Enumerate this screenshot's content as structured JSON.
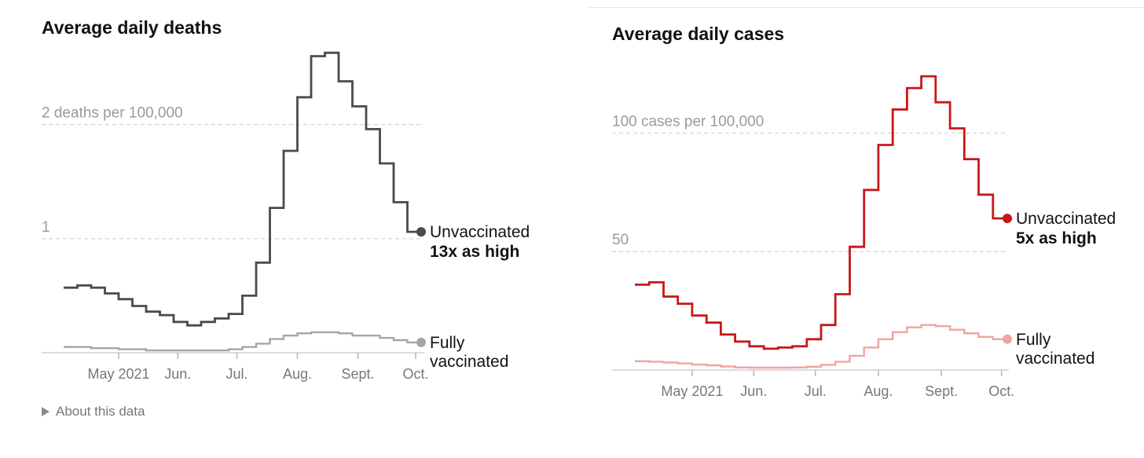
{
  "about_label": "About this data",
  "colors": {
    "deaths_unvaccinated": "#4a4a4a",
    "deaths_vaccinated": "#a5a5a5",
    "cases_unvaccinated": "#c8171b",
    "cases_vaccinated": "#f0a3a0",
    "gridline": "#dcdcdc",
    "axis": "#d0d0d0"
  },
  "chart_data": [
    {
      "type": "line",
      "step": true,
      "title": "Average daily deaths",
      "ylabel": "deaths per 100,000",
      "ylim": [
        0,
        2.7
      ],
      "gridlines": [
        {
          "value": 2,
          "label": "2 deaths per 100,000"
        },
        {
          "value": 1,
          "label": "1"
        }
      ],
      "xlim": [
        0,
        26
      ],
      "xticks": [
        {
          "pos": 4,
          "label": "May 2021"
        },
        {
          "pos": 8.3,
          "label": "Jun."
        },
        {
          "pos": 12.6,
          "label": "Jul."
        },
        {
          "pos": 17,
          "label": "Aug."
        },
        {
          "pos": 21.4,
          "label": "Sept."
        },
        {
          "pos": 25.6,
          "label": "Oct."
        }
      ],
      "series": [
        {
          "name": "Unvaccinated",
          "annotation": "13x as high",
          "values": [
            0.57,
            0.59,
            0.57,
            0.52,
            0.47,
            0.41,
            0.36,
            0.33,
            0.27,
            0.24,
            0.27,
            0.3,
            0.34,
            0.5,
            0.79,
            1.27,
            1.77,
            2.24,
            2.6,
            2.63,
            2.38,
            2.16,
            1.96,
            1.66,
            1.32,
            1.06
          ]
        },
        {
          "name": "Fully vaccinated",
          "values": [
            0.05,
            0.05,
            0.04,
            0.04,
            0.03,
            0.03,
            0.02,
            0.02,
            0.02,
            0.02,
            0.02,
            0.02,
            0.03,
            0.05,
            0.08,
            0.12,
            0.15,
            0.17,
            0.18,
            0.18,
            0.17,
            0.15,
            0.15,
            0.13,
            0.11,
            0.09
          ]
        }
      ]
    },
    {
      "type": "line",
      "step": true,
      "title": "Average daily cases",
      "ylabel": "cases per 100,000",
      "ylim": [
        0,
        128
      ],
      "gridlines": [
        {
          "value": 100,
          "label": "100 cases per 100,000"
        },
        {
          "value": 50,
          "label": "50"
        }
      ],
      "xlim": [
        0,
        26
      ],
      "xticks": [
        {
          "pos": 4,
          "label": "May 2021"
        },
        {
          "pos": 8.3,
          "label": "Jun."
        },
        {
          "pos": 12.6,
          "label": "Jul."
        },
        {
          "pos": 17,
          "label": "Aug."
        },
        {
          "pos": 21.4,
          "label": "Sept."
        },
        {
          "pos": 25.6,
          "label": "Oct."
        }
      ],
      "series": [
        {
          "name": "Unvaccinated",
          "annotation": "5x as high",
          "values": [
            36,
            37,
            31,
            28,
            23,
            20,
            15,
            12,
            10,
            9,
            9.5,
            10,
            13,
            19,
            32,
            52,
            76,
            95,
            110,
            119,
            124,
            113,
            102,
            89,
            74,
            64
          ]
        },
        {
          "name": "Fully vaccinated",
          "values": [
            3.7,
            3.5,
            3.2,
            2.8,
            2.3,
            2,
            1.5,
            1.1,
            1,
            1,
            1,
            1.1,
            1.4,
            2.2,
            3.5,
            6,
            9.5,
            13,
            16,
            18,
            19,
            18.5,
            17,
            15.5,
            14,
            13
          ]
        }
      ]
    }
  ]
}
